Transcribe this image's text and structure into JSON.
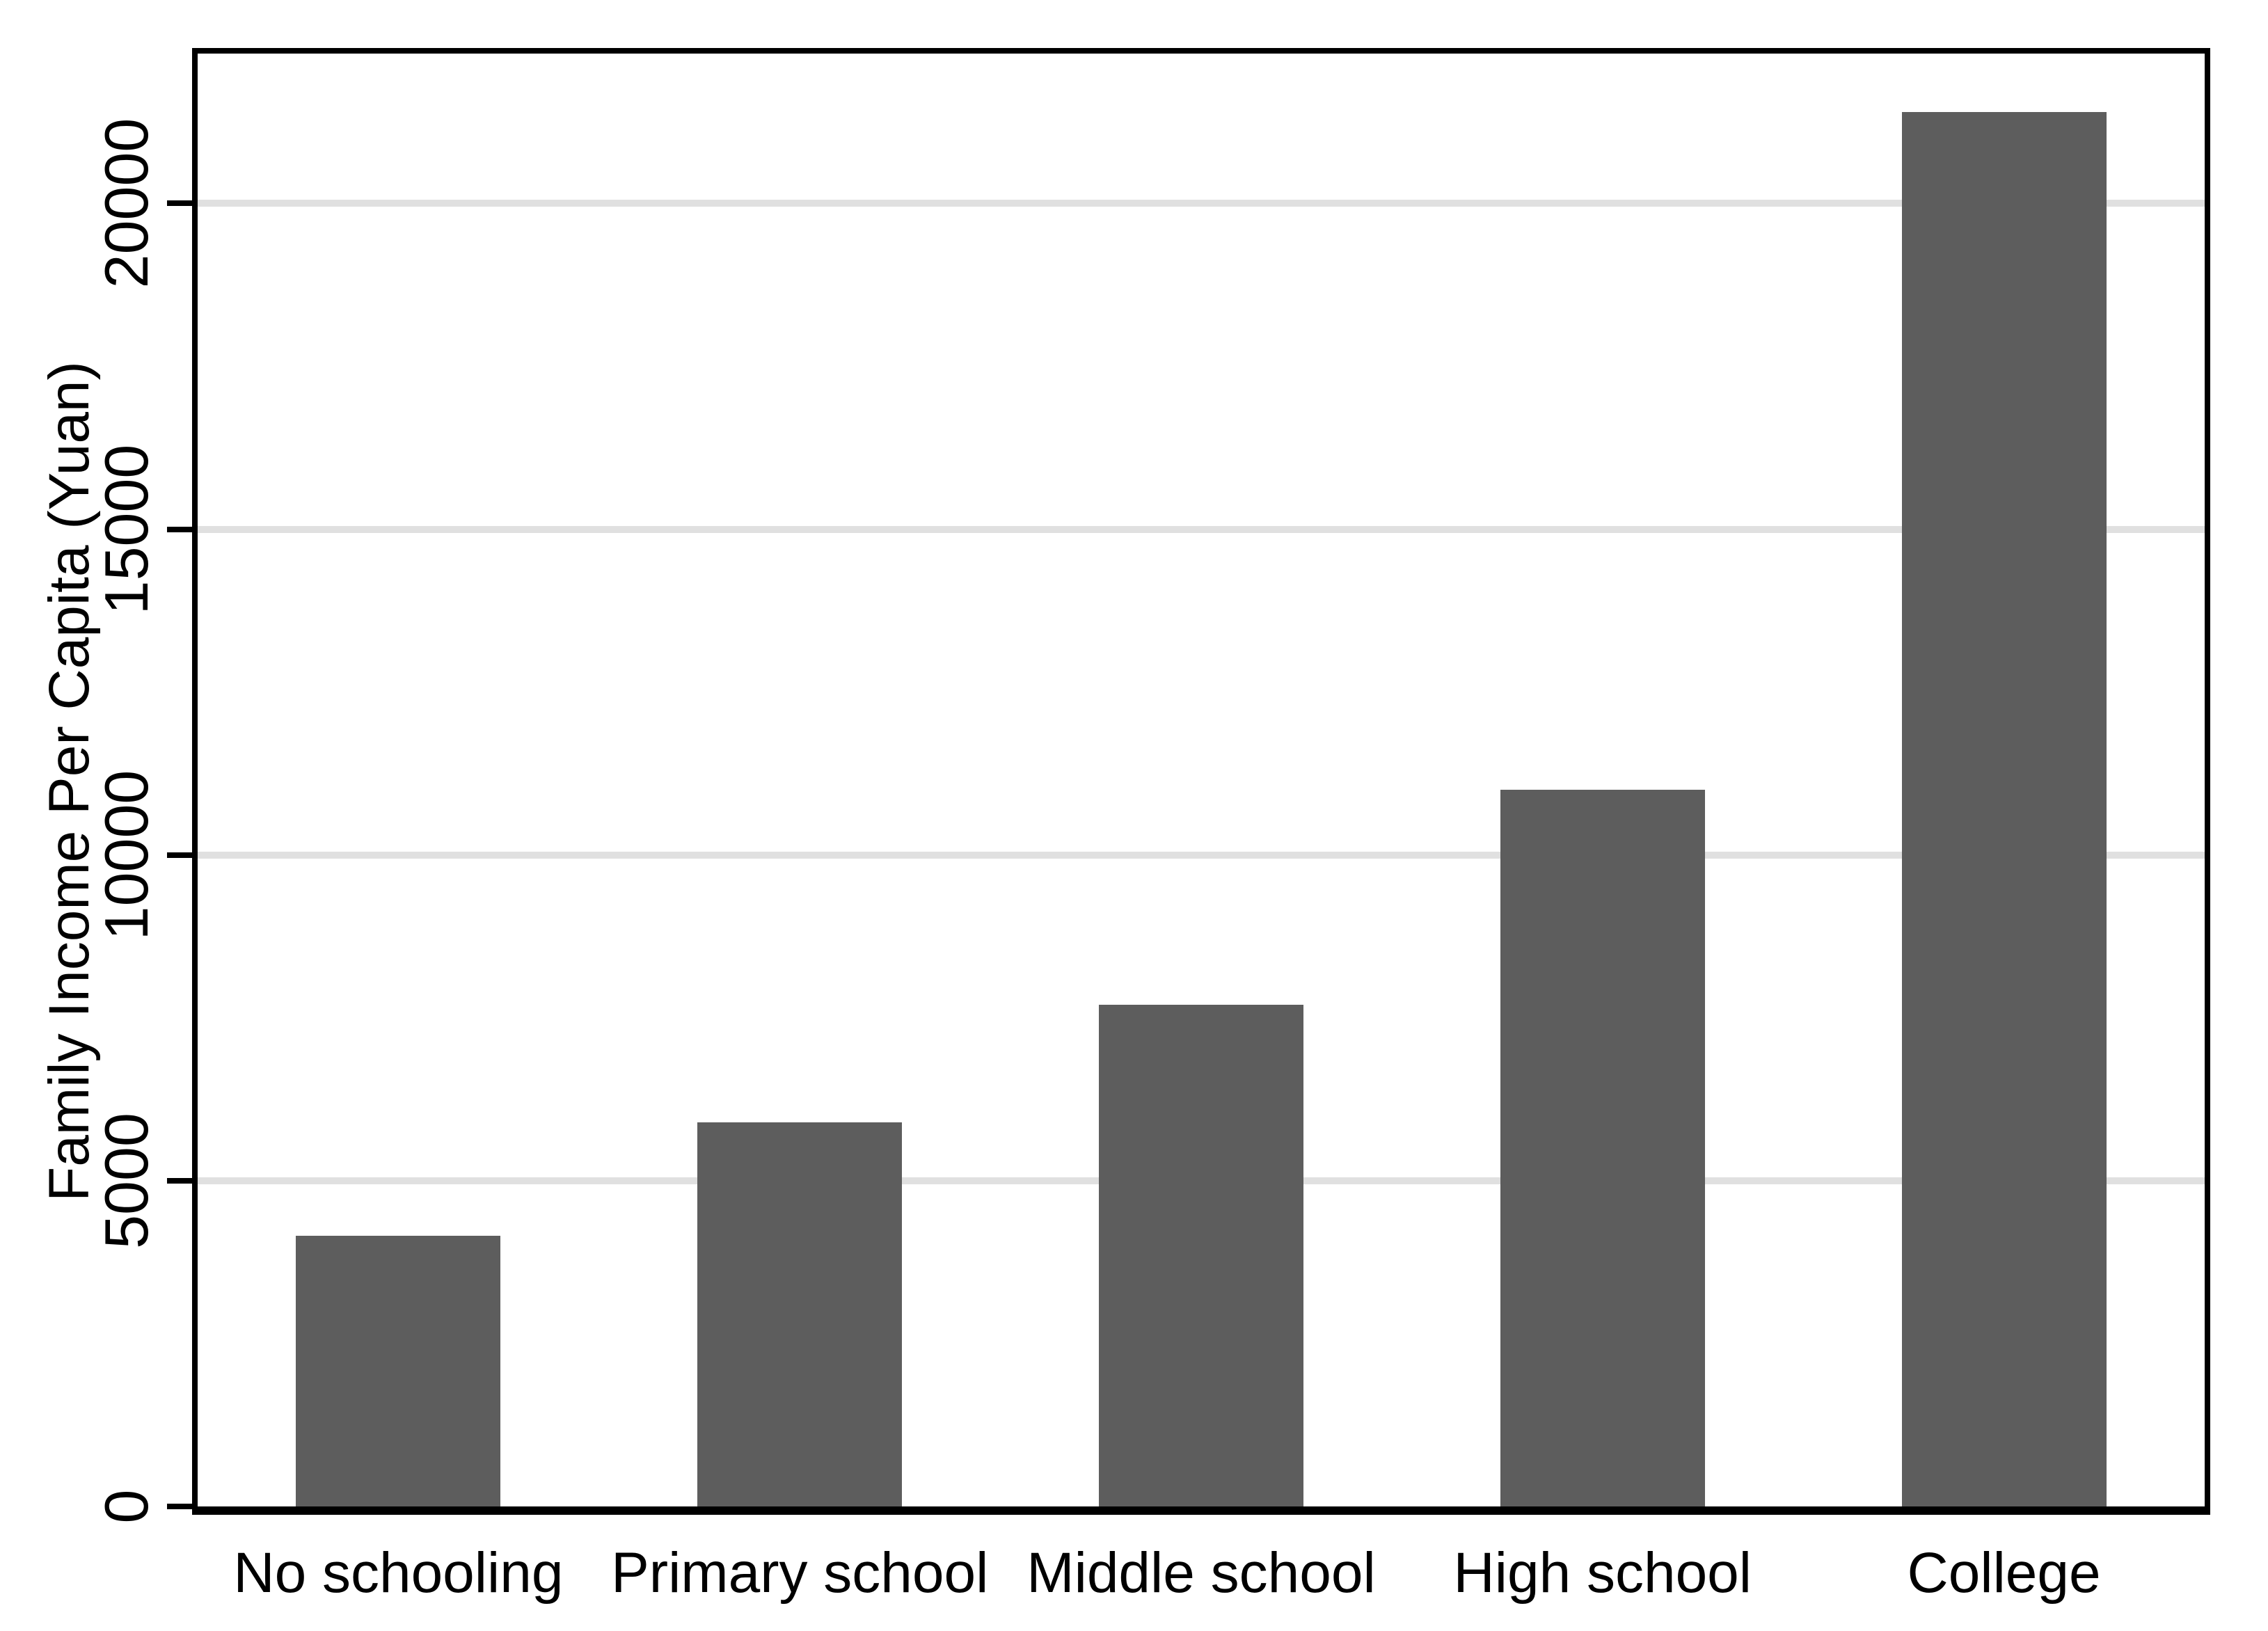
{
  "figure": {
    "background_color": "#ffffff",
    "frame_color": "#000000",
    "text_color": "#000000"
  },
  "chart_data": {
    "type": "bar",
    "title": "",
    "xlabel": "",
    "ylabel": "Family Income Per Capita (Yuan)",
    "categories": [
      "No schooling",
      "Primary school",
      "Middle school",
      "High school",
      "College"
    ],
    "values": [
      4150,
      5900,
      7700,
      11000,
      21400
    ],
    "yticks": [
      0,
      5000,
      10000,
      15000,
      20000
    ],
    "ytick_labels": [
      "0",
      "5000",
      "10000",
      "15000",
      "20000"
    ],
    "ylim": [
      0,
      22300
    ],
    "ytick_label_angle_deg": 90,
    "grid": "horizontal-light-gray",
    "legend": "none",
    "bar_color": "#5d5d5d",
    "gridline_color": "#e0e0e0",
    "bar_slot_fill": 0.51
  }
}
